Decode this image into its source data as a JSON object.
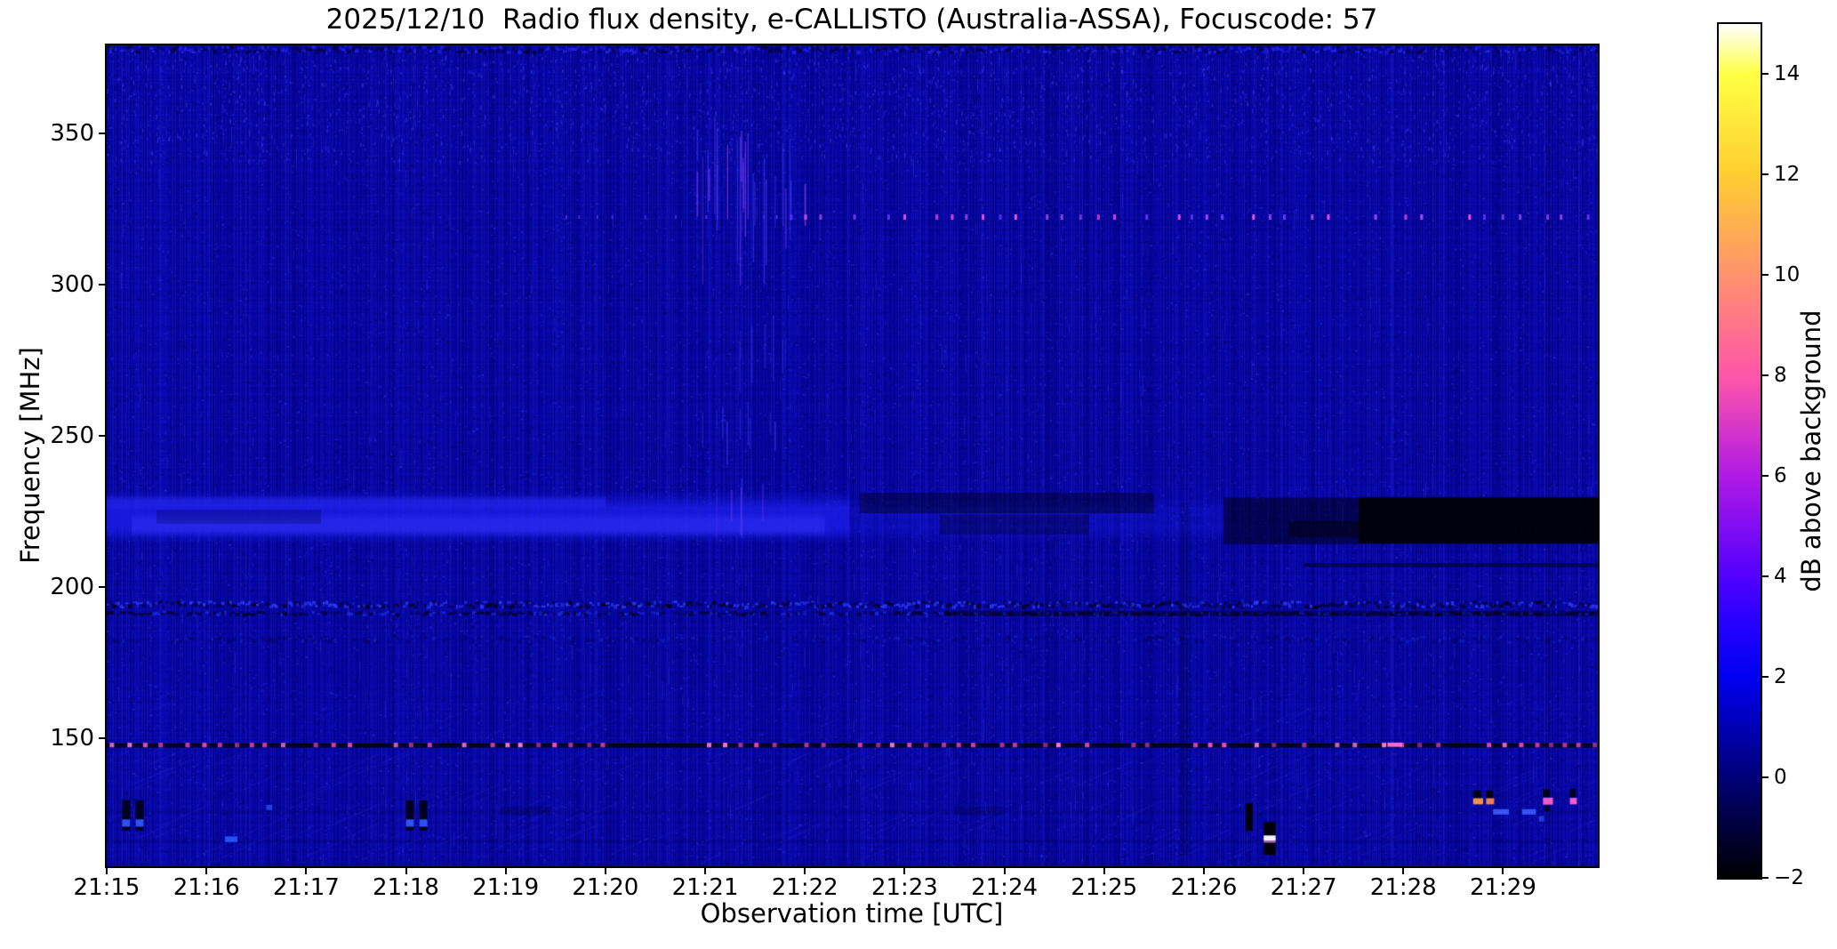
{
  "chart_data": {
    "type": "heatmap",
    "title": "2025/12/10  Radio flux density, e-CALLISTO (Australia-ASSA), Focuscode: 57",
    "xlabel": "Observation time [UTC]",
    "ylabel": "Frequency [MHz]",
    "x_tick_labels": [
      "21:15",
      "21:16",
      "21:17",
      "21:18",
      "21:19",
      "21:20",
      "21:21",
      "21:22",
      "21:23",
      "21:24",
      "21:25",
      "21:26",
      "21:27",
      "21:28",
      "21:29"
    ],
    "x_tick_minutes": [
      0,
      1,
      2,
      3,
      4,
      5,
      6,
      7,
      8,
      9,
      10,
      11,
      12,
      13,
      14
    ],
    "start_time_utc": "21:15",
    "x_range_minutes": [
      0,
      14.95
    ],
    "y_tick_labels": [
      "350",
      "300",
      "250",
      "200",
      "150"
    ],
    "y_tick_mhz": [
      350,
      300,
      250,
      200,
      150
    ],
    "y_range_mhz": [
      107.7,
      379.2
    ],
    "grid": false,
    "background_level_db": 0.8,
    "base_color": "#0505a4",
    "colorbar": {
      "label": "dB above background",
      "tick_labels": [
        "14",
        "12",
        "10",
        "8",
        "6",
        "4",
        "2",
        "0",
        "−2"
      ],
      "tick_values": [
        14,
        12,
        10,
        8,
        6,
        4,
        2,
        0,
        -2
      ],
      "range_db": [
        -2,
        15
      ],
      "colormap": "gnuplot2",
      "stops": [
        [
          0,
          "#000000"
        ],
        [
          0.118,
          "#000078"
        ],
        [
          0.235,
          "#0000f0"
        ],
        [
          0.294,
          "#2200ff"
        ],
        [
          0.353,
          "#5200ff"
        ],
        [
          0.471,
          "#b11ae5"
        ],
        [
          0.588,
          "#ff56a9"
        ],
        [
          0.706,
          "#ff926d"
        ],
        [
          0.824,
          "#ffce31"
        ],
        [
          0.941,
          "#ffff44"
        ],
        [
          1,
          "#ffffff"
        ]
      ]
    },
    "features": [
      {
        "id": "top-noise-row",
        "kind": "checker",
        "t0": 0,
        "t1": 14.95,
        "f0": 376.4,
        "f1": 379.2,
        "density": 0.9,
        "bright": "#2a2aff",
        "dark": "#000016",
        "a": 0.75,
        "darkBias": 0.5
      },
      {
        "id": "bright-band-220mhz",
        "kind": "glow",
        "t0": 0,
        "t1": 7.45,
        "f0": 214.4,
        "f1": 231.6,
        "color": "30,30,238",
        "a": 0.75
      },
      {
        "id": "bright-band-core",
        "kind": "glow",
        "t0": 0.25,
        "t1": 7.2,
        "f0": 216.5,
        "f1": 224.5,
        "color": "48,48,245",
        "a": 0.55
      },
      {
        "id": "bright-band-upper",
        "kind": "glow",
        "t0": 0,
        "t1": 5.0,
        "f0": 225.5,
        "f1": 230.5,
        "color": "42,42,242",
        "a": 0.45
      },
      {
        "id": "band-dark-wedge",
        "kind": "rect",
        "t0": 0.5,
        "t1": 2.15,
        "f0": 221.0,
        "f1": 225.5,
        "color": "#000030",
        "a": 0.25
      },
      {
        "id": "band-fade",
        "kind": "glow",
        "t0": 7.45,
        "t1": 11.2,
        "f0": 214.5,
        "f1": 230.5,
        "color": "25,25,228",
        "a": 0.32
      },
      {
        "id": "band-smudge-upper",
        "kind": "rect",
        "t0": 7.55,
        "t1": 10.5,
        "f0": 224.5,
        "f1": 231.2,
        "color": "#000014",
        "a": 0.42
      },
      {
        "id": "band-smudge-lower",
        "kind": "rect",
        "t0": 8.35,
        "t1": 9.85,
        "f0": 217.5,
        "f1": 224.0,
        "color": "#000014",
        "a": 0.3
      },
      {
        "id": "band-dark-mid",
        "kind": "rect",
        "t0": 11.2,
        "t1": 12.55,
        "f0": 214.2,
        "f1": 229.6,
        "color": "#000010",
        "a": 0.52
      },
      {
        "id": "band-black-dropout",
        "kind": "rect",
        "t0": 12.55,
        "t1": 14.96,
        "f0": 214.4,
        "f1": 229.8,
        "color": "#010108",
        "a": 0.96
      },
      {
        "id": "band-black-tail",
        "kind": "rect",
        "t0": 11.85,
        "t1": 12.6,
        "f0": 216.5,
        "f1": 221.8,
        "color": "#010108",
        "a": 0.5
      },
      {
        "id": "dark-line-207",
        "kind": "rect",
        "t0": 12.0,
        "t1": 14.96,
        "f0": 206.6,
        "f1": 208.0,
        "color": "#000018",
        "a": 0.5
      },
      {
        "id": "speckle-band-194",
        "kind": "checker",
        "t0": 0,
        "t1": 14.96,
        "f0": 193.0,
        "f1": 195.6,
        "density": 0.95,
        "bright": "#3340ff",
        "dark": "#000010",
        "a": 0.85,
        "darkBias": 0.5
      },
      {
        "id": "dark-band-191",
        "kind": "checker",
        "t0": 0,
        "t1": 14.96,
        "f0": 190.4,
        "f1": 192.2,
        "density": 0.8,
        "bright": "#2233ee",
        "dark": "#000008",
        "a": 0.7,
        "darkBias": 0.72
      },
      {
        "id": "dark-band-191-right",
        "kind": "rect",
        "t0": 8.4,
        "t1": 14.96,
        "f0": 190.4,
        "f1": 192.2,
        "color": "#000008",
        "a": 0.38
      },
      {
        "id": "speckle-band-183",
        "kind": "checker",
        "t0": 0,
        "t1": 14.96,
        "f0": 181.4,
        "f1": 184.2,
        "density": 0.5,
        "bright": "#2030e0",
        "dark": "#000012",
        "a": 0.4,
        "darkBias": 0.5
      },
      {
        "id": "rfi-line-148",
        "kind": "rect",
        "t0": 0,
        "t1": 14.96,
        "f0": 147.0,
        "f1": 148.3,
        "color": "#020210",
        "a": 0.92
      },
      {
        "id": "rfi-148-pink-dots",
        "kind": "dotline",
        "f": 147.8,
        "t0": 0.03,
        "t1": 14.9,
        "spacing": 0.158,
        "w": 5,
        "h": 5,
        "colors": [
          "#ff4ecb",
          "#e944bb",
          "#ff7ad6",
          "#b836a0"
        ],
        "skip": 0.22
      },
      {
        "id": "rfi-148-bright-dash",
        "kind": "rect",
        "t0": 12.84,
        "t1": 12.99,
        "f0": 147.2,
        "f1": 148.6,
        "color": "#ff66d0",
        "a": 1
      },
      {
        "id": "dotted-line-322",
        "kind": "dotline",
        "f": 322.4,
        "t0": 6.85,
        "t1": 14.9,
        "spacing": 0.157,
        "w": 3,
        "h": 6,
        "colors": [
          "#a44cf2",
          "#ff55e0",
          "#6a3cff"
        ],
        "skip": 0.3
      },
      {
        "id": "dotted-line-322-faint",
        "kind": "dotline",
        "f": 322.4,
        "t0": 4.6,
        "t1": 6.85,
        "spacing": 0.157,
        "w": 2,
        "h": 4,
        "colors": [
          "#5533dd"
        ],
        "skip": 0.5
      },
      {
        "id": "streak-cluster-2121",
        "kind": "streaks",
        "t0": 5.9,
        "t1": 7.05,
        "f0": 285,
        "f1": 356,
        "n": 26,
        "colors": [
          "#4444ff",
          "#4444ff",
          "#8844ff",
          "#a24cf0"
        ],
        "lenMin": 35,
        "lenMax": 175,
        "a": 0.6
      },
      {
        "id": "streak-cluster-2121-mid",
        "kind": "streaks",
        "t0": 6.2,
        "t1": 6.8,
        "f0": 262,
        "f1": 290,
        "n": 6,
        "colors": [
          "#3d3df5"
        ],
        "lenMin": 25,
        "lenMax": 90,
        "a": 0.45
      },
      {
        "id": "streak-cluster-2121-low",
        "kind": "streaks",
        "t0": 5.95,
        "t1": 6.75,
        "f0": 240,
        "f1": 262,
        "n": 8,
        "colors": [
          "#4040f8"
        ],
        "lenMin": 20,
        "lenMax": 55,
        "a": 0.5
      },
      {
        "id": "streaks-into-band",
        "kind": "streaks",
        "t0": 6.05,
        "t1": 6.6,
        "f0": 214,
        "f1": 236,
        "n": 5,
        "colors": [
          "#7a3cf0",
          "#4040ff"
        ],
        "lenMin": 30,
        "lenMax": 70,
        "a": 0.5
      },
      {
        "id": "hatch-texture-low",
        "kind": "hatch",
        "t0": 0,
        "t1": 14.96,
        "f0": 108,
        "f1": 146,
        "a": 0.1
      },
      {
        "id": "hatch-texture-mid",
        "kind": "hatch",
        "t0": 0,
        "t1": 14.96,
        "f0": 148,
        "f1": 163,
        "a": 0.07
      },
      {
        "id": "faint-row-126",
        "kind": "rect",
        "t0": 0,
        "t1": 14.96,
        "f0": 125.2,
        "f1": 126.2,
        "color": "#000018",
        "a": 0.12
      },
      {
        "id": "faint-row-116",
        "kind": "rect",
        "t0": 0,
        "t1": 14.96,
        "f0": 115.6,
        "f1": 116.6,
        "color": "#000018",
        "a": 0.1
      },
      {
        "id": "rfi-pair-1a",
        "kind": "rect",
        "t0": 0.155,
        "t1": 0.235,
        "f0": 119.5,
        "f1": 129.5,
        "color": "#000012",
        "a": 0.9
      },
      {
        "id": "rfi-pair-1a-core",
        "kind": "rect",
        "t0": 0.155,
        "t1": 0.235,
        "f0": 120.8,
        "f1": 123.2,
        "color": "#2e55ff",
        "a": 0.95
      },
      {
        "id": "rfi-pair-1b",
        "kind": "rect",
        "t0": 0.29,
        "t1": 0.37,
        "f0": 119.5,
        "f1": 129.5,
        "color": "#000012",
        "a": 0.9
      },
      {
        "id": "rfi-pair-1b-core",
        "kind": "rect",
        "t0": 0.29,
        "t1": 0.37,
        "f0": 120.8,
        "f1": 123.2,
        "color": "#2e55ff",
        "a": 0.95
      },
      {
        "id": "rfi-pair-2a",
        "kind": "rect",
        "t0": 3.0,
        "t1": 3.08,
        "f0": 119.5,
        "f1": 129.5,
        "color": "#000012",
        "a": 0.9
      },
      {
        "id": "rfi-pair-2a-core",
        "kind": "rect",
        "t0": 3.0,
        "t1": 3.08,
        "f0": 120.8,
        "f1": 123.2,
        "color": "#2e55ff",
        "a": 0.95
      },
      {
        "id": "rfi-pair-2b",
        "kind": "rect",
        "t0": 3.135,
        "t1": 3.215,
        "f0": 119.5,
        "f1": 129.5,
        "color": "#000012",
        "a": 0.9
      },
      {
        "id": "rfi-pair-2b-core",
        "kind": "rect",
        "t0": 3.135,
        "t1": 3.215,
        "f0": 120.8,
        "f1": 123.2,
        "color": "#2e55ff",
        "a": 0.95
      },
      {
        "id": "blue-dash-2116",
        "kind": "rect",
        "t0": 1.185,
        "t1": 1.31,
        "f0": 115.7,
        "f1": 117.6,
        "color": "#2b52ff",
        "a": 0.95
      },
      {
        "id": "blue-dot-2116",
        "kind": "rect",
        "t0": 1.6,
        "t1": 1.66,
        "f0": 126.3,
        "f1": 128.0,
        "color": "#2b50f0",
        "a": 0.8
      },
      {
        "id": "dark-smudge-row-1",
        "kind": "rect",
        "t0": 3.95,
        "t1": 4.45,
        "f0": 124.5,
        "f1": 127.5,
        "color": "#000010",
        "a": 0.18
      },
      {
        "id": "dark-smudge-row-2",
        "kind": "rect",
        "t0": 8.5,
        "t1": 9.0,
        "f0": 124.5,
        "f1": 127.5,
        "color": "#000010",
        "a": 0.15
      },
      {
        "id": "faint-dark-column",
        "kind": "rect",
        "t0": 10.76,
        "t1": 10.86,
        "f0": 111,
        "f1": 228,
        "color": "#000008",
        "a": 0.15
      },
      {
        "id": "black-vbar",
        "kind": "rect",
        "t0": 11.42,
        "t1": 11.49,
        "f0": 119.5,
        "f1": 128.6,
        "color": "#000005",
        "a": 0.97
      },
      {
        "id": "black-blob-low",
        "kind": "rect",
        "t0": 11.6,
        "t1": 11.72,
        "f0": 111.5,
        "f1": 122.3,
        "color": "#000005",
        "a": 0.97
      },
      {
        "id": "white-stripe",
        "kind": "rect",
        "t0": 11.6,
        "t1": 11.72,
        "f0": 116.1,
        "f1": 117.9,
        "color": "#f4f2ff",
        "a": 1
      },
      {
        "id": "white-stripe-fringe",
        "kind": "rect",
        "t0": 11.6,
        "t1": 11.72,
        "f0": 115.5,
        "f1": 116.1,
        "color": "#c36ae0",
        "a": 0.9
      },
      {
        "id": "black-dot-r1",
        "kind": "rect",
        "t0": 13.7,
        "t1": 13.78,
        "f0": 129.6,
        "f1": 132.8,
        "color": "#000008",
        "a": 0.9
      },
      {
        "id": "orange-dash-r1",
        "kind": "rect",
        "t0": 13.7,
        "t1": 13.8,
        "f0": 128.2,
        "f1": 130.2,
        "color": "#ff9a45",
        "a": 0.95
      },
      {
        "id": "black-dot-r2",
        "kind": "rect",
        "t0": 13.83,
        "t1": 13.9,
        "f0": 129.6,
        "f1": 132.8,
        "color": "#000008",
        "a": 0.9
      },
      {
        "id": "orange-dash-r2",
        "kind": "rect",
        "t0": 13.83,
        "t1": 13.91,
        "f0": 128.2,
        "f1": 130.2,
        "color": "#ff8855",
        "a": 0.95
      },
      {
        "id": "blue-dash-r1",
        "kind": "rect",
        "t0": 13.9,
        "t1": 14.06,
        "f0": 124.8,
        "f1": 126.6,
        "color": "#3c5cff",
        "a": 0.9
      },
      {
        "id": "blue-dash-r2",
        "kind": "rect",
        "t0": 14.19,
        "t1": 14.33,
        "f0": 124.8,
        "f1": 126.6,
        "color": "#3c5cff",
        "a": 0.9
      },
      {
        "id": "pink-dash-r3",
        "kind": "rect",
        "t0": 14.4,
        "t1": 14.5,
        "f0": 128.1,
        "f1": 130.4,
        "color": "#ff5fc8",
        "a": 0.95
      },
      {
        "id": "black-dot-r3",
        "kind": "rect",
        "t0": 14.4,
        "t1": 14.47,
        "f0": 130.6,
        "f1": 133.2,
        "color": "#000008",
        "a": 0.85
      },
      {
        "id": "black-dot-r3b",
        "kind": "rect",
        "t0": 14.41,
        "t1": 14.47,
        "f0": 125.8,
        "f1": 127.8,
        "color": "#000008",
        "a": 0.7
      },
      {
        "id": "blue-dot-r3",
        "kind": "rect",
        "t0": 14.36,
        "t1": 14.41,
        "f0": 122.5,
        "f1": 124.3,
        "color": "#2b48e8",
        "a": 0.8
      },
      {
        "id": "pink-dash-r4",
        "kind": "rect",
        "t0": 14.67,
        "t1": 14.74,
        "f0": 128.2,
        "f1": 130.3,
        "color": "#ff63cc",
        "a": 0.95
      },
      {
        "id": "black-dot-r4",
        "kind": "rect",
        "t0": 14.67,
        "t1": 14.73,
        "f0": 130.6,
        "f1": 133.4,
        "color": "#000008",
        "a": 0.85
      }
    ]
  }
}
